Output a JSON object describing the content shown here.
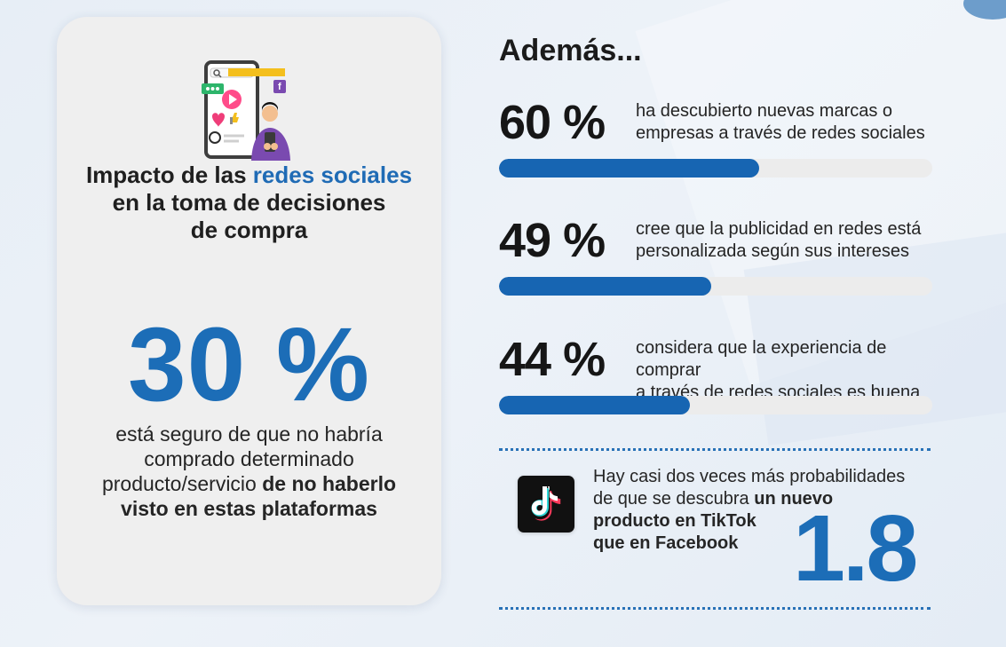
{
  "left_panel": {
    "title_part1": "Impacto de las ",
    "title_highlight": "redes sociales",
    "title_part2": "en la toma de decisiones",
    "title_part3": "de compra",
    "hero_percent": "30 %",
    "hero_text_regular_1": "está seguro de que no habría",
    "hero_text_regular_2": "comprado determinado",
    "hero_text_regular_3": "producto/servicio ",
    "hero_text_bold_1": "de no haberlo",
    "hero_text_bold_2": "visto en estas plataformas",
    "illustration_icons": [
      "search-icon",
      "chat-icon",
      "play-icon",
      "heart-icon",
      "thumbs-up-icon",
      "facebook-icon",
      "person-icon",
      "smartphone-icon"
    ]
  },
  "right_panel": {
    "title": "Además...",
    "stats": [
      {
        "percent": "60 %",
        "line_1": "ha descubierto nuevas marcas o",
        "line_2": "empresas a través de redes sociales",
        "progress": 0.6
      },
      {
        "percent": "49 %",
        "line_1": "cree que la publicidad en redes está",
        "line_2": "personalizada según sus intereses",
        "progress": 0.49
      },
      {
        "percent": "44 %",
        "line_1": "considera que la experiencia de comprar",
        "line_2": "a través de redes sociales es buena",
        "progress": 0.44
      }
    ],
    "tiktok": {
      "icon": "tiktok-icon",
      "line_1": "Hay casi dos veces más probabilidades",
      "line_2_regular": "de que se descubra ",
      "line_2_bold": "un nuevo",
      "line_3_bold": "producto en TikTok",
      "line_4_bold": "que en Facebook",
      "multiplier": "1.8"
    }
  },
  "colors": {
    "accent_blue": "#1c6db7",
    "progress_blue": "#1765b2",
    "card_background": "#efefef",
    "page_background": "#e9eff6",
    "text_dark": "#1b1b1b"
  }
}
